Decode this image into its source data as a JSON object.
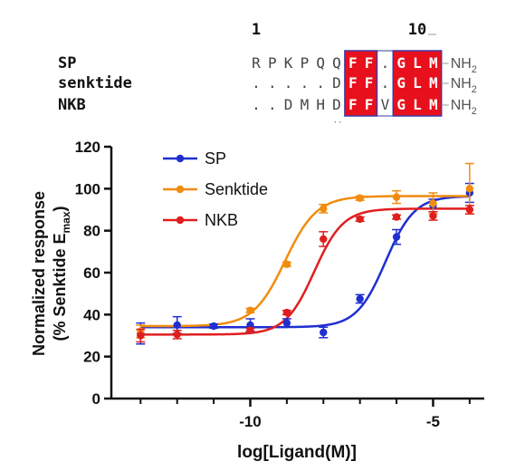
{
  "alignment": {
    "numbers": [
      "1",
      "10"
    ],
    "amide": "NH",
    "amide_sub": "2",
    "rows": [
      {
        "name": "SP",
        "sequence": "RPKPQQFF.GLM"
      },
      {
        "name": "senktide",
        "sequence": ".....DFF.GLM"
      },
      {
        "name": "NKB",
        "sequence": "..DMHDFFVGLM"
      }
    ],
    "highlight_color": "#e8101c",
    "box_color": "#3a3aa8"
  },
  "chart_data": {
    "type": "scatter",
    "xlabel": "log[Ligand(M)]",
    "ylabel_line1": "Normalized response",
    "ylabel_line2_main": "(% Senktide E",
    "ylabel_line2_sub": "max",
    "ylabel_line2_end": ")",
    "xlim": [
      -13.8,
      -3.6
    ],
    "ylim": [
      0,
      120
    ],
    "xticks": [
      -10,
      -5
    ],
    "xtick_labels": [
      "-10",
      "-5"
    ],
    "yticks": [
      0,
      20,
      40,
      60,
      80,
      100,
      120
    ],
    "ytick_labels": [
      "0",
      "20",
      "40",
      "60",
      "80",
      "100",
      "120"
    ],
    "legend_position": "top-left",
    "series": [
      {
        "name": "SP",
        "color": "#1f2fd0",
        "fit": {
          "bottom": 34,
          "top": 96.5,
          "log_ec50": -6.3,
          "hill": 1.1
        },
        "points": [
          {
            "x": -13,
            "y": 31,
            "err": 5
          },
          {
            "x": -12,
            "y": 35,
            "err": 4
          },
          {
            "x": -11,
            "y": 34.5,
            "err": 1
          },
          {
            "x": -10,
            "y": 35,
            "err": 3
          },
          {
            "x": -9,
            "y": 36,
            "err": 2
          },
          {
            "x": -8,
            "y": 31.5,
            "err": 2.5
          },
          {
            "x": -7,
            "y": 47.5,
            "err": 2
          },
          {
            "x": -6,
            "y": 77,
            "err": 3.5
          },
          {
            "x": -5,
            "y": 92,
            "err": 3
          },
          {
            "x": -4,
            "y": 98,
            "err": 4.5
          }
        ]
      },
      {
        "name": "Senktide",
        "color": "#f08c10",
        "fit": {
          "bottom": 34.5,
          "top": 96.5,
          "log_ec50": -9.05,
          "hill": 1.0
        },
        "points": [
          {
            "x": -13,
            "y": 32,
            "err": 3
          },
          {
            "x": -10,
            "y": 42,
            "err": 1
          },
          {
            "x": -9,
            "y": 64,
            "err": 1
          },
          {
            "x": -8,
            "y": 90.5,
            "err": 2
          },
          {
            "x": -7,
            "y": 95.5,
            "err": 1
          },
          {
            "x": -6,
            "y": 96,
            "err": 3
          },
          {
            "x": -5,
            "y": 93,
            "err": 5
          },
          {
            "x": -4,
            "y": 100,
            "err": 12
          }
        ]
      },
      {
        "name": "NKB",
        "color": "#e01e1e",
        "fit": {
          "bottom": 30.5,
          "top": 90.5,
          "log_ec50": -8.25,
          "hill": 1.1
        },
        "points": [
          {
            "x": -13,
            "y": 30,
            "err": 3
          },
          {
            "x": -12,
            "y": 30.5,
            "err": 2
          },
          {
            "x": -10,
            "y": 32.5,
            "err": 1
          },
          {
            "x": -9,
            "y": 41,
            "err": 1
          },
          {
            "x": -8,
            "y": 76,
            "err": 3.5
          },
          {
            "x": -7,
            "y": 85.5,
            "err": 1
          },
          {
            "x": -6,
            "y": 86.5,
            "err": 1
          },
          {
            "x": -5,
            "y": 87,
            "err": 2
          },
          {
            "x": -4,
            "y": 90,
            "err": 2
          }
        ]
      }
    ]
  }
}
